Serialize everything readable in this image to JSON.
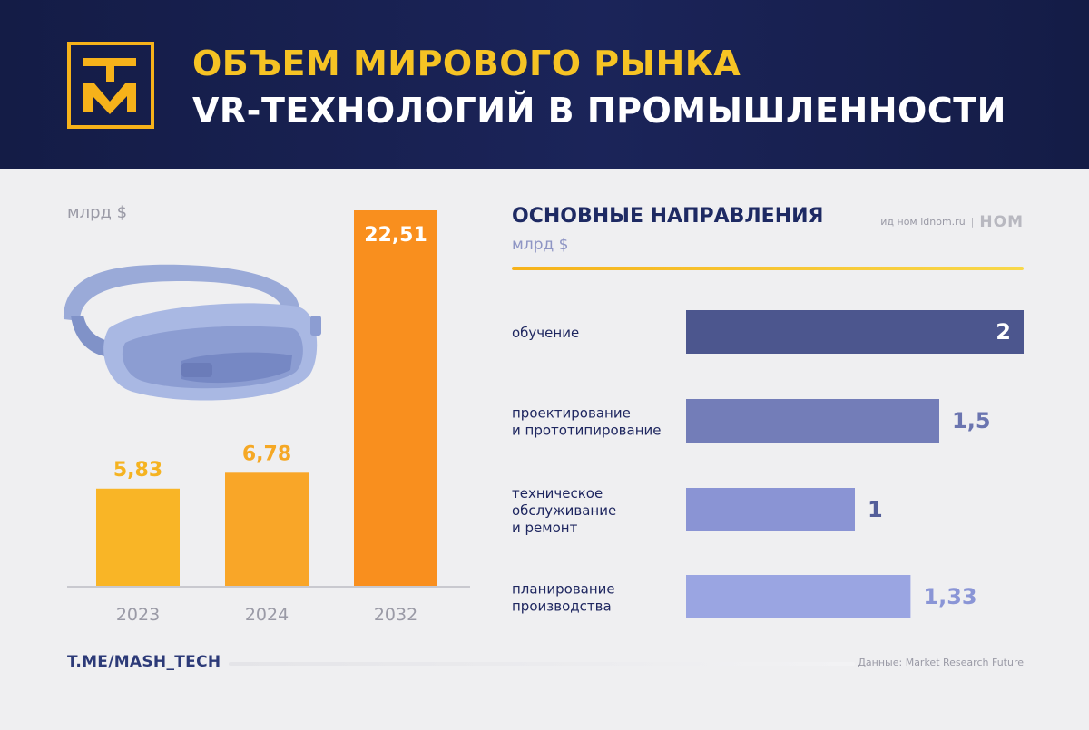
{
  "header": {
    "logo_text": "ТМ",
    "title_line1": "ОБЪЕМ МИРОВОГО РЫНКА",
    "title_line2": "VR-ТЕХНОЛОГИЙ В ПРОМЫШЛЕННОСТИ"
  },
  "left": {
    "unit": "млрд $"
  },
  "right": {
    "title": "ОСНОВНЫЕ НАПРАВЛЕНИЯ",
    "unit": "млрд $",
    "brand_small": "ид ном idnom.ru",
    "brand_sep": "|",
    "brand_logo": "НОМ"
  },
  "footer": {
    "left": "T.ME/MASH_TECH",
    "right": "Данные: Market Research Future"
  },
  "colors": {
    "left_bars": [
      "#f9b526",
      "#f9a628",
      "#f98f1e"
    ],
    "left_labels": [
      "#f5b321",
      "#f5a825",
      "#ffffff"
    ],
    "right_bars": [
      "#4c568e",
      "#737db8",
      "#8a94d4",
      "#9aa5e2"
    ],
    "right_labels": [
      "#ffffff",
      "#6b75b0",
      "#545e9a",
      "#8a95d6"
    ]
  },
  "chart_data": [
    {
      "type": "bar",
      "categories": [
        "2023",
        "2024",
        "2032"
      ],
      "values": [
        5.83,
        6.78,
        22.51
      ],
      "value_labels": [
        "5,83",
        "6,78",
        "22,51"
      ],
      "ylim": [
        0,
        22.51
      ],
      "title": "",
      "xlabel": "",
      "ylabel": "млрд $"
    },
    {
      "type": "bar",
      "orientation": "horizontal",
      "categories": [
        [
          "обучение"
        ],
        [
          "проектирование",
          "и прототипирование"
        ],
        [
          "техническое",
          "обслуживание",
          "и ремонт"
        ],
        [
          "планирование",
          "производства"
        ]
      ],
      "values": [
        2,
        1.5,
        1,
        1.33
      ],
      "value_labels": [
        "2",
        "1,5",
        "1",
        "1,33"
      ],
      "xlim": [
        0,
        2
      ],
      "title": "ОСНОВНЫЕ НАПРАВЛЕНИЯ",
      "xlabel": "млрд $",
      "ylabel": ""
    }
  ]
}
